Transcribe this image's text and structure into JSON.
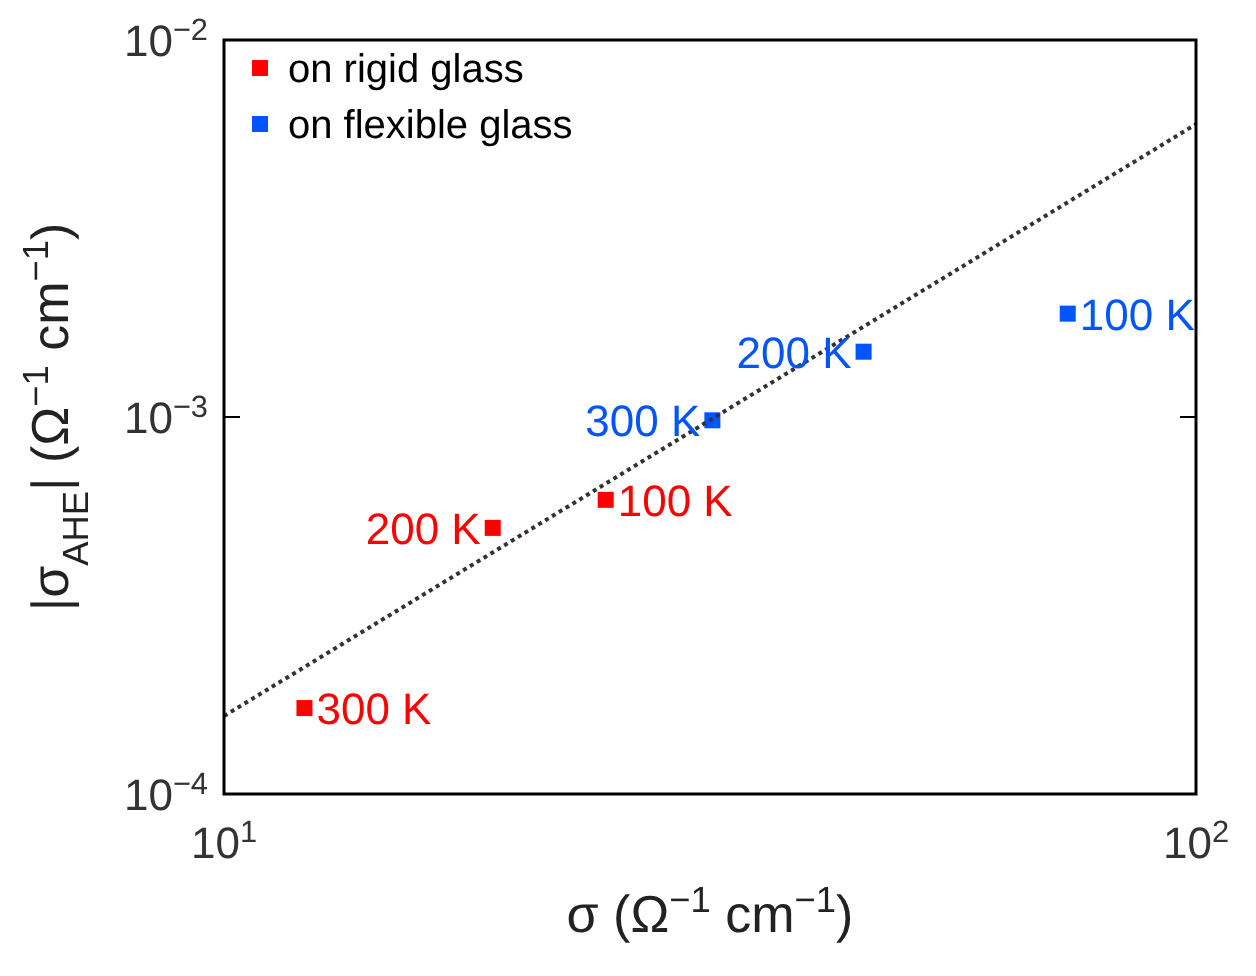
{
  "chart_data": {
    "type": "scatter",
    "log": "xy",
    "xlabel": "σ (Ω$^{−1}$ cm$^{−1}$)",
    "ylabel": "|σ$_{AHE}$| (Ω$^{−1}$ cm$^{−1}$)",
    "xlim": [
      10,
      100
    ],
    "ylim": [
      0.0001,
      0.01
    ],
    "xticks": [
      {
        "value": 10,
        "label": "10$^{1}$"
      },
      {
        "value": 100,
        "label": "10$^{2}$"
      }
    ],
    "yticks": [
      {
        "value": 0.0001,
        "label": "10$^{−4}$"
      },
      {
        "value": 0.001,
        "label": "10$^{−3}$"
      },
      {
        "value": 0.01,
        "label": "10$^{−2}$"
      }
    ],
    "marker": "square",
    "legend": "top left",
    "grid": false,
    "series": [
      {
        "name": "on rigid glass",
        "color": "#ff0000",
        "x": [
          12.1,
          18.9,
          24.7
        ],
        "values": [
          0.000169,
          0.000508,
          0.000603
        ]
      },
      {
        "name": "on flexible glass",
        "color": "#0055ff",
        "x": [
          31.8,
          45.5,
          73.8
        ],
        "values": [
          0.00098,
          0.00149,
          0.00188
        ]
      },
      {
        "type": "line",
        "color": "#333333",
        "line_style": "dotted",
        "marker": "none",
        "x": [
          10,
          100
        ],
        "values": [
          0.000161,
          0.00598
        ]
      }
    ],
    "annotations": [
      {
        "text": "300 K",
        "x": 12.1,
        "y": 0.000169
      },
      {
        "text": "200 K",
        "x": 18.9,
        "y": 0.000508
      },
      {
        "text": "100 K",
        "x": 24.7,
        "y": 0.000603
      },
      {
        "text": "300 K",
        "x": 31.8,
        "y": 0.00098
      },
      {
        "text": "200 K",
        "x": 45.5,
        "y": 0.00149
      },
      {
        "text": "100 K",
        "x": 73.8,
        "y": 0.00188
      }
    ]
  }
}
